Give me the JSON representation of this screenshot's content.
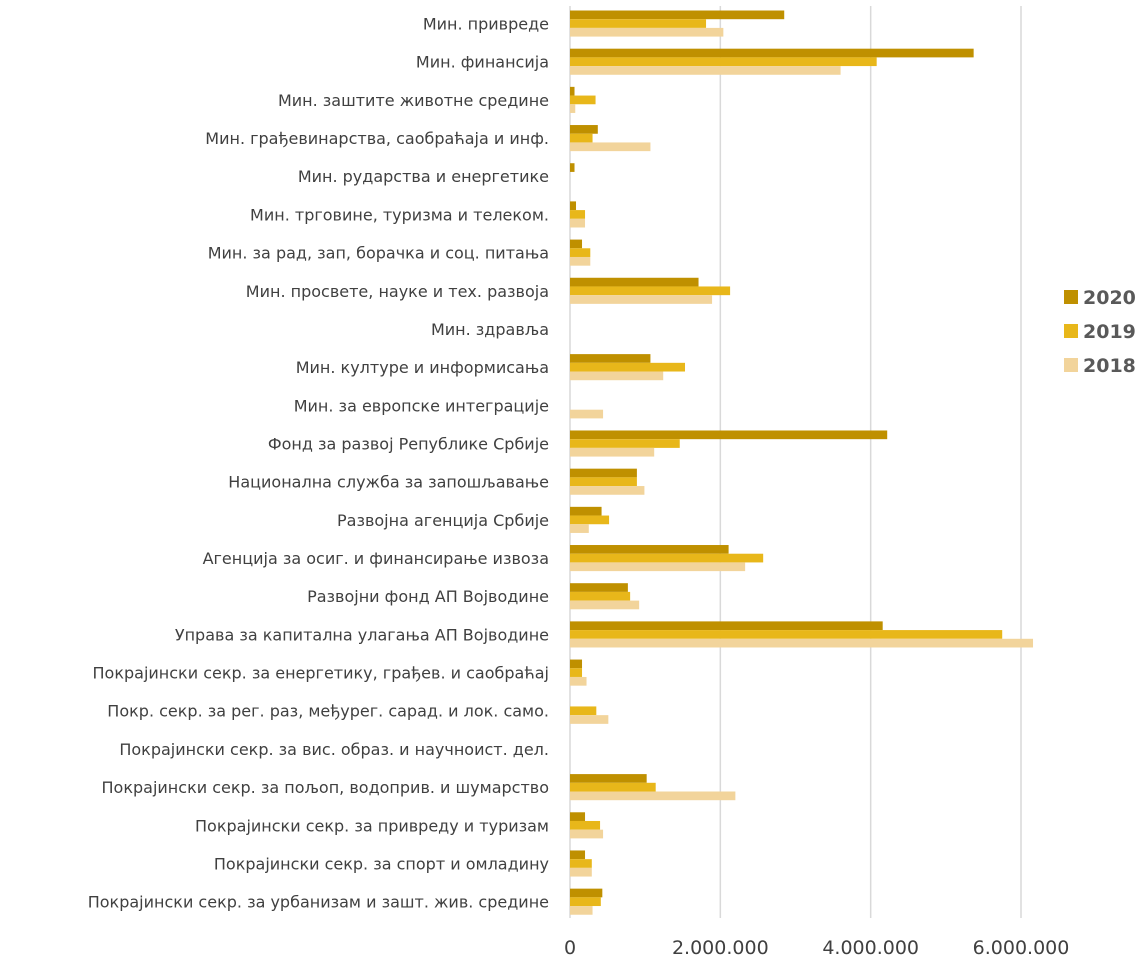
{
  "chart_data": {
    "type": "bar",
    "orientation": "horizontal",
    "categories": [
      "Мин. привреде",
      "Мин. финансија",
      "Мин. заштите животне средине",
      "Мин. грађевинарства, саобраћаја и инф.",
      "Мин. рударства и енергетике",
      "Мин. трговине, туризма и телеком.",
      "Мин. за рад, зап, борачка и соц. питања",
      "Мин. просвете, науке и тех. развоја",
      "Мин. здравља",
      "Мин. културе и информисања",
      "Мин. за европске интеграције",
      "Фонд за развој Републике Србије",
      "Национална служба за запошљавање",
      "Развојна агенција Србије",
      "Агенција за осиг. и финансирање извоза",
      "Развојни фонд АП Војводине",
      "Управа за капитална улагања АП Војводине",
      "Покрајински секр. за енергетику, грађев. и саобраћај",
      "Покр. секр. за рег. раз, међурег. сарад. и лок. само.",
      "Покрајински секр. за вис. образ. и научноист. дел.",
      "Покрајински секр. за пољоп, водоприв. и шумарство",
      "Покрајински секр. за привреду и туризам",
      "Покрајински секр. за спорт и омладину",
      "Покрајински секр. за урбанизам и зашт. жив. средине"
    ],
    "series": [
      {
        "name": "2020",
        "color": "#BF9000",
        "values": [
          2850000,
          5370000,
          60000,
          370000,
          60000,
          80000,
          160000,
          1710000,
          0,
          1070000,
          0,
          4220000,
          890000,
          420000,
          2110000,
          770000,
          4160000,
          160000,
          0,
          0,
          1020000,
          200000,
          200000,
          430000
        ]
      },
      {
        "name": "2019",
        "color": "#E8B71A",
        "values": [
          1810000,
          4080000,
          340000,
          300000,
          0,
          200000,
          270000,
          2130000,
          0,
          1530000,
          0,
          1460000,
          890000,
          520000,
          2570000,
          800000,
          5750000,
          160000,
          350000,
          0,
          1140000,
          400000,
          290000,
          410000
        ]
      },
      {
        "name": "2018",
        "color": "#F2D49B",
        "values": [
          2040000,
          3600000,
          70000,
          1070000,
          0,
          200000,
          270000,
          1890000,
          0,
          1240000,
          440000,
          1120000,
          990000,
          250000,
          2330000,
          920000,
          6160000,
          220000,
          510000,
          0,
          2200000,
          440000,
          290000,
          300000
        ]
      }
    ],
    "xlim": [
      0,
      6000000
    ],
    "xticks": [
      0,
      2000000,
      4000000,
      6000000
    ],
    "xtick_labels": [
      "0",
      "2.000.000",
      "4.000.000",
      "6.000.000"
    ],
    "legend_position": "right",
    "gridlines": true
  }
}
